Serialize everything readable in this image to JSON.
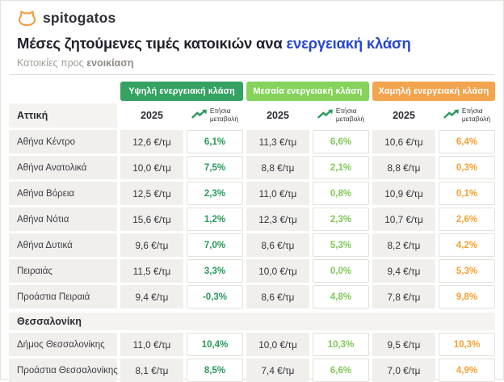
{
  "brand": {
    "name": "spitogatos"
  },
  "header": {
    "title_prefix": "Μέσες ζητούμενες τιμές κατοικιών ανα ",
    "title_highlight": "ενεργειακή κλάση",
    "subtitle_prefix": "Κατοικίες προς ",
    "subtitle_bold": "ενοικίαση"
  },
  "colors": {
    "brand_orange": "#F79A3E",
    "title_blue": "#2847D0",
    "high_class_green": "#35A263",
    "mid_class_green": "#85D35B",
    "low_class_orange": "#F2A44F",
    "change_high_text": "#27995A",
    "change_mid_text": "#80C957",
    "change_low_text": "#F5A030",
    "row_bg": "#F1EFEC"
  },
  "table": {
    "class_headers": [
      {
        "label": "Υψηλή ενεργειακή κλάση"
      },
      {
        "label": "Μεσαία ενεργειακή κλάση"
      },
      {
        "label": "Χαμηλή ενεργειακή κλάση"
      }
    ],
    "year_header": "2025",
    "change_header": {
      "line1": "Ετήσια",
      "line2": "μεταβολή"
    },
    "sections": [
      {
        "name": "Αττική",
        "rows": [
          {
            "label": "Αθήνα Κέντρο",
            "cells": [
              {
                "price": "12,6 €/τμ",
                "change": "6,1%"
              },
              {
                "price": "11,3 €/τμ",
                "change": "6,6%"
              },
              {
                "price": "10,6 €/τμ",
                "change": "6,4%"
              }
            ]
          },
          {
            "label": "Αθήνα Ανατολικά",
            "cells": [
              {
                "price": "10,0 €/τμ",
                "change": "7,5%"
              },
              {
                "price": "8,8 €/τμ",
                "change": "2,1%"
              },
              {
                "price": "8,8 €/τμ",
                "change": "0,3%"
              }
            ]
          },
          {
            "label": "Αθήνα Βόρεια",
            "cells": [
              {
                "price": "12,5 €/τμ",
                "change": "2,3%"
              },
              {
                "price": "11,0 €/τμ",
                "change": "0,8%"
              },
              {
                "price": "10,9 €/τμ",
                "change": "0,1%"
              }
            ]
          },
          {
            "label": "Αθήνα Νότια",
            "cells": [
              {
                "price": "15,6 €/τμ",
                "change": "1,2%"
              },
              {
                "price": "12,3 €/τμ",
                "change": "2,3%"
              },
              {
                "price": "10,7 €/τμ",
                "change": "2,6%"
              }
            ]
          },
          {
            "label": "Αθήνα Δυτικά",
            "cells": [
              {
                "price": "9,6 €/τμ",
                "change": "7,0%"
              },
              {
                "price": "8,6 €/τμ",
                "change": "5,3%"
              },
              {
                "price": "8,2 €/τμ",
                "change": "4,2%"
              }
            ]
          },
          {
            "label": "Πειραιάς",
            "cells": [
              {
                "price": "11,5 €/τμ",
                "change": "3,3%"
              },
              {
                "price": "10,0 €/τμ",
                "change": "0,0%"
              },
              {
                "price": "9,4 €/τμ",
                "change": "5,3%"
              }
            ]
          },
          {
            "label": "Προάστια Πειραιά",
            "cells": [
              {
                "price": "9,4 €/τμ",
                "change": "-0,3%"
              },
              {
                "price": "8,6 €/τμ",
                "change": "4,8%"
              },
              {
                "price": "7,8 €/τμ",
                "change": "9,8%"
              }
            ]
          }
        ]
      },
      {
        "name": "Θεσσαλονίκη",
        "rows": [
          {
            "label": "Δήμος Θεσσαλονίκης",
            "cells": [
              {
                "price": "11,0 €/τμ",
                "change": "10,4%"
              },
              {
                "price": "10,0 €/τμ",
                "change": "10,3%"
              },
              {
                "price": "9,5 €/τμ",
                "change": "10,3%"
              }
            ]
          },
          {
            "label": "Προάστια Θεσσαλονίκης",
            "cells": [
              {
                "price": "8,1 €/τμ",
                "change": "8,5%"
              },
              {
                "price": "7,4 €/τμ",
                "change": "6,6%"
              },
              {
                "price": "7,0 €/τμ",
                "change": "4,9%"
              }
            ]
          }
        ]
      }
    ]
  },
  "chart_data": {
    "type": "table",
    "title": "Μέσες ζητούμενες τιμές κατοικιών ανα ενεργειακή κλάση",
    "subtitle": "Κατοικίες προς ενοικίαση",
    "column_groups": [
      "Υψηλή ενεργειακή κλάση",
      "Μεσαία ενεργειακή κλάση",
      "Χαμηλή ενεργειακή κλάση"
    ],
    "columns_per_group": [
      "2025 (€/τμ)",
      "Ετήσια μεταβολή (%)"
    ],
    "rows": [
      {
        "section": "Αττική",
        "region": "Αθήνα Κέντρο",
        "high": [
          12.6,
          6.1
        ],
        "mid": [
          11.3,
          6.6
        ],
        "low": [
          10.6,
          6.4
        ]
      },
      {
        "section": "Αττική",
        "region": "Αθήνα Ανατολικά",
        "high": [
          10.0,
          7.5
        ],
        "mid": [
          8.8,
          2.1
        ],
        "low": [
          8.8,
          0.3
        ]
      },
      {
        "section": "Αττική",
        "region": "Αθήνα Βόρεια",
        "high": [
          12.5,
          2.3
        ],
        "mid": [
          11.0,
          0.8
        ],
        "low": [
          10.9,
          0.1
        ]
      },
      {
        "section": "Αττική",
        "region": "Αθήνα Νότια",
        "high": [
          15.6,
          1.2
        ],
        "mid": [
          12.3,
          2.3
        ],
        "low": [
          10.7,
          2.6
        ]
      },
      {
        "section": "Αττική",
        "region": "Αθήνα Δυτικά",
        "high": [
          9.6,
          7.0
        ],
        "mid": [
          8.6,
          5.3
        ],
        "low": [
          8.2,
          4.2
        ]
      },
      {
        "section": "Αττική",
        "region": "Πειραιάς",
        "high": [
          11.5,
          3.3
        ],
        "mid": [
          10.0,
          0.0
        ],
        "low": [
          9.4,
          5.3
        ]
      },
      {
        "section": "Αττική",
        "region": "Προάστια Πειραιά",
        "high": [
          9.4,
          -0.3
        ],
        "mid": [
          8.6,
          4.8
        ],
        "low": [
          7.8,
          9.8
        ]
      },
      {
        "section": "Θεσσαλονίκη",
        "region": "Δήμος Θεσσαλονίκης",
        "high": [
          11.0,
          10.4
        ],
        "mid": [
          10.0,
          10.3
        ],
        "low": [
          9.5,
          10.3
        ]
      },
      {
        "section": "Θεσσαλονίκη",
        "region": "Προάστια Θεσσαλονίκης",
        "high": [
          8.1,
          8.5
        ],
        "mid": [
          7.4,
          6.6
        ],
        "low": [
          7.0,
          4.9
        ]
      }
    ]
  }
}
